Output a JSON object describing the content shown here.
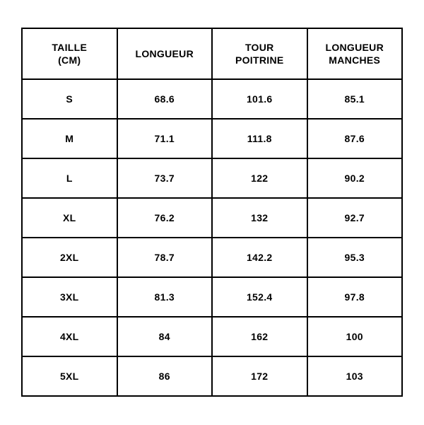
{
  "table": {
    "type": "table",
    "columns": [
      {
        "label": "TAILLE\n(CM)",
        "key": "size"
      },
      {
        "label": "LONGUEUR",
        "key": "length"
      },
      {
        "label": "TOUR\nPOITRINE",
        "key": "chest"
      },
      {
        "label": "LONGUEUR\nMANCHES",
        "key": "sleeves"
      }
    ],
    "rows": [
      {
        "size": "S",
        "length": "68.6",
        "chest": "101.6",
        "sleeves": "85.1"
      },
      {
        "size": "M",
        "length": "71.1",
        "chest": "111.8",
        "sleeves": "87.6"
      },
      {
        "size": "L",
        "length": "73.7",
        "chest": "122",
        "sleeves": "90.2"
      },
      {
        "size": "XL",
        "length": "76.2",
        "chest": "132",
        "sleeves": "92.7"
      },
      {
        "size": "2XL",
        "length": "78.7",
        "chest": "142.2",
        "sleeves": "95.3"
      },
      {
        "size": "3XL",
        "length": "81.3",
        "chest": "152.4",
        "sleeves": "97.8"
      },
      {
        "size": "4XL",
        "length": "84",
        "chest": "162",
        "sleeves": "100"
      },
      {
        "size": "5XL",
        "length": "86",
        "chest": "172",
        "sleeves": "103"
      }
    ],
    "border_color": "#000000",
    "border_width": 2,
    "background_color": "#ffffff",
    "text_color": "#000000",
    "font_weight": 700,
    "header_fontsize": 14,
    "cell_fontsize": 14
  }
}
